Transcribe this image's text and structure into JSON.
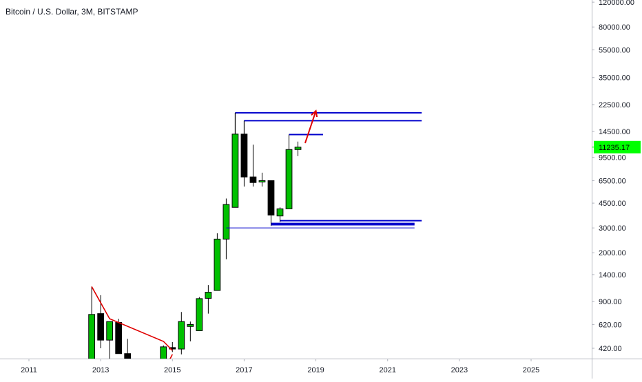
{
  "header": {
    "title": "Bitcoin / U.S. Dollar, 3M, BITSTAMP"
  },
  "chart_data": {
    "type": "candlestick",
    "title": "Bitcoin / U.S. Dollar, 3M, BITSTAMP",
    "y_scale": "log",
    "ylim": [
      355,
      123000
    ],
    "xlim": [
      2010.75,
      2026.9
    ],
    "grid": false,
    "last_price": {
      "value": 11235.17,
      "label": "11235.17",
      "color": "#00ff00"
    },
    "y_ticks": [
      {
        "value": 120000,
        "label": "120000.00"
      },
      {
        "value": 80000,
        "label": "80000.00"
      },
      {
        "value": 55000,
        "label": "55000.00"
      },
      {
        "value": 35000,
        "label": "35000.00"
      },
      {
        "value": 22500,
        "label": "22500.00"
      },
      {
        "value": 14500,
        "label": "14500.00"
      },
      {
        "value": 9500,
        "label": "9500.00"
      },
      {
        "value": 6500,
        "label": "6500.00"
      },
      {
        "value": 4500,
        "label": "4500.00"
      },
      {
        "value": 3000,
        "label": "3000.00"
      },
      {
        "value": 2000,
        "label": "2000.00"
      },
      {
        "value": 1400,
        "label": "1400.00"
      },
      {
        "value": 900,
        "label": "900.00"
      },
      {
        "value": 620,
        "label": "620.00"
      },
      {
        "value": 420,
        "label": "420.00"
      }
    ],
    "x_ticks": [
      {
        "value": 2011,
        "label": "2011"
      },
      {
        "value": 2013,
        "label": "2013"
      },
      {
        "value": 2015,
        "label": "2015"
      },
      {
        "value": 2017,
        "label": "2017"
      },
      {
        "value": 2019,
        "label": "2019"
      },
      {
        "value": 2021,
        "label": "2021"
      },
      {
        "value": 2023,
        "label": "2023"
      },
      {
        "value": 2025,
        "label": "2025"
      }
    ],
    "colors": {
      "up": "#00c000",
      "down": "#000000",
      "level": "#0000cc",
      "trend": "#e00000",
      "axis_text": "#131722",
      "axis_line": "#b2b5be"
    },
    "candles": [
      {
        "t": 2012.75,
        "o": 200,
        "h": 1150,
        "l": 200,
        "c": 730
      },
      {
        "t": 2013.0,
        "o": 740,
        "h": 1000,
        "l": 420,
        "c": 480
      },
      {
        "t": 2013.25,
        "o": 480,
        "h": 650,
        "l": 230,
        "c": 650
      },
      {
        "t": 2013.5,
        "o": 640,
        "h": 680,
        "l": 385,
        "c": 385
      },
      {
        "t": 2013.75,
        "o": 385,
        "h": 490,
        "l": 300,
        "c": 330
      },
      {
        "t": 2014.75,
        "o": 320,
        "h": 440,
        "l": 275,
        "c": 430
      },
      {
        "t": 2015.0,
        "o": 425,
        "h": 465,
        "l": 395,
        "c": 415
      },
      {
        "t": 2015.25,
        "o": 415,
        "h": 760,
        "l": 380,
        "c": 650
      },
      {
        "t": 2015.5,
        "o": 600,
        "h": 650,
        "l": 470,
        "c": 620
      },
      {
        "t": 2015.75,
        "o": 560,
        "h": 970,
        "l": 560,
        "c": 945
      },
      {
        "t": 2016.0,
        "o": 950,
        "h": 1180,
        "l": 740,
        "c": 1050
      },
      {
        "t": 2016.25,
        "o": 1080,
        "h": 2750,
        "l": 1080,
        "c": 2500
      },
      {
        "t": 2016.5,
        "o": 2500,
        "h": 4850,
        "l": 1800,
        "c": 4400
      },
      {
        "t": 2016.75,
        "o": 4200,
        "h": 19700,
        "l": 4200,
        "c": 13900
      },
      {
        "t": 2017.0,
        "o": 13900,
        "h": 17300,
        "l": 5900,
        "c": 6900
      },
      {
        "t": 2017.25,
        "o": 6900,
        "h": 11700,
        "l": 5900,
        "c": 6300
      },
      {
        "t": 2017.5,
        "o": 6400,
        "h": 7400,
        "l": 5900,
        "c": 6500
      },
      {
        "t": 2017.75,
        "o": 6500,
        "h": 6500,
        "l": 3100,
        "c": 3700
      },
      {
        "t": 2018.0,
        "o": 3650,
        "h": 4200,
        "l": 3300,
        "c": 4100
      },
      {
        "t": 2018.25,
        "o": 4100,
        "h": 13800,
        "l": 4100,
        "c": 10800
      },
      {
        "t": 2018.5,
        "o": 10800,
        "h": 12300,
        "l": 9700,
        "c": 11235
      }
    ],
    "horizontal_levels": [
      {
        "y": 19700,
        "x_start": 2016.75,
        "x_end": 2021.95,
        "style": "bold",
        "drop_to": 13900
      },
      {
        "y": 17300,
        "x_start": 2017.0,
        "x_end": 2021.95,
        "style": "bold",
        "drop_to": 13900
      },
      {
        "y": 13800,
        "x_start": 2018.25,
        "x_end": 2019.2,
        "style": "bold",
        "drop_to": 10800
      },
      {
        "y": 3380,
        "x_start": 2018.0,
        "x_end": 2021.95,
        "style": "bold",
        "drop_to": 3650
      },
      {
        "y": 3230,
        "x_start": 2017.75,
        "x_end": 2021.75,
        "style": "bold",
        "drop_to": 3700
      },
      {
        "y": 3160,
        "x_start": 2017.75,
        "x_end": 2021.75,
        "style": "bold"
      },
      {
        "y": 3000,
        "x_start": 2016.5,
        "x_end": 2021.75,
        "style": "thin"
      }
    ],
    "trend_lines": [
      {
        "points": [
          [
            2012.75,
            1150
          ],
          [
            2013.25,
            680
          ],
          [
            2014.75,
            470
          ],
          [
            2015.0,
            405
          ]
        ]
      },
      {
        "points": [
          [
            2014.9,
            340
          ],
          [
            2015.0,
            380
          ]
        ]
      }
    ],
    "arrows": [
      {
        "from": [
          2018.7,
          12000
        ],
        "to": [
          2019.0,
          20300
        ]
      }
    ]
  }
}
